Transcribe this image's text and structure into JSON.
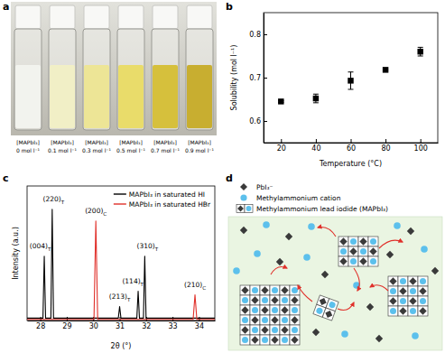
{
  "panel_labels": [
    "a",
    "b",
    "c",
    "d"
  ],
  "photo": {
    "vials": [
      {
        "label": "[MAPbI₃]",
        "concentration": "0 mol l⁻¹",
        "color": "#f2f3ee"
      },
      {
        "label": "[MAPbI₃]",
        "concentration": "0.1 mol l⁻¹",
        "color": "#f1efc6"
      },
      {
        "label": "[MAPbI₃]",
        "concentration": "0.3 mol l⁻¹",
        "color": "#ede596"
      },
      {
        "label": "[MAPbI₃]",
        "concentration": "0.5 mol l⁻¹",
        "color": "#e9dc6a"
      },
      {
        "label": "[MAPbI₃]",
        "concentration": "0.7 mol l⁻¹",
        "color": "#d6c03c"
      },
      {
        "label": "[MAPbI₃]",
        "concentration": "0.9 mol l⁻¹",
        "color": "#c8ae30"
      }
    ]
  },
  "chart_data": [
    {
      "type": "scatter",
      "x": [
        20,
        40,
        60,
        80,
        100
      ],
      "values": [
        0.645,
        0.652,
        0.693,
        0.718,
        0.76
      ],
      "errors": [
        0.002,
        0.01,
        0.02,
        0.002,
        0.01
      ],
      "xlim": [
        10,
        110
      ],
      "xticks": [
        20,
        40,
        60,
        80,
        100
      ],
      "ylim": [
        0.55,
        0.85
      ],
      "yticks": [
        0.6,
        0.7,
        0.8
      ],
      "x_label": "Temperature (°C)",
      "y_label": "Solubility (mol l⁻¹)",
      "color": "#000000",
      "marker": "square"
    },
    {
      "type": "line",
      "xlim": [
        27.5,
        34.6
      ],
      "xticks": [
        28,
        29,
        30,
        31,
        32,
        33,
        34
      ],
      "ylim": [
        0,
        1.15
      ],
      "tick_labels": "x",
      "legend": "top-right",
      "x_label": "2θ (°)",
      "y_label": "Intensity (a.u.)",
      "series": [
        {
          "name": "MAPbI₃ in saturated HI",
          "color": "#000000",
          "x": [
            27.5,
            28.1,
            28.15,
            28.2,
            28.4,
            28.45,
            28.5,
            30.95,
            31.0,
            31.05,
            31.65,
            31.7,
            31.75,
            31.9,
            31.95,
            32.0,
            34.6
          ],
          "values": [
            0.02,
            0.02,
            0.55,
            0.02,
            0.02,
            0.95,
            0.02,
            0.02,
            0.12,
            0.02,
            0.02,
            0.25,
            0.02,
            0.02,
            0.55,
            0.02,
            0.02
          ]
        },
        {
          "name": "MAPbI₃ in saturated HBr",
          "color": "#e0302a",
          "x": [
            27.5,
            30.03,
            30.1,
            30.17,
            33.78,
            33.85,
            33.92,
            34.6
          ],
          "values": [
            0.01,
            0.01,
            0.85,
            0.01,
            0.01,
            0.22,
            0.01,
            0.01
          ]
        }
      ],
      "annotations": [
        {
          "text": "(004)",
          "sub": "T",
          "x": 28.0,
          "y": 0.6
        },
        {
          "text": "(220)",
          "sub": "T",
          "x": 28.5,
          "y": 1.0
        },
        {
          "text": "(200)",
          "sub": "C",
          "x": 30.1,
          "y": 0.9
        },
        {
          "text": "(213)",
          "sub": "T",
          "x": 31.0,
          "y": 0.17
        },
        {
          "text": "(114)",
          "sub": "T",
          "x": 31.5,
          "y": 0.3
        },
        {
          "text": "(310)",
          "sub": "T",
          "x": 32.05,
          "y": 0.6
        },
        {
          "text": "(210)",
          "sub": "C",
          "x": 33.85,
          "y": 0.27
        }
      ]
    }
  ],
  "diagram": {
    "legend": [
      {
        "label": "PbI₃⁻",
        "shape": "diamond"
      },
      {
        "label": "Methylammonium cation",
        "shape": "circle"
      },
      {
        "label": "Methylammonium lead iodide (MAPbI₃)",
        "shape": "crystal"
      }
    ]
  }
}
